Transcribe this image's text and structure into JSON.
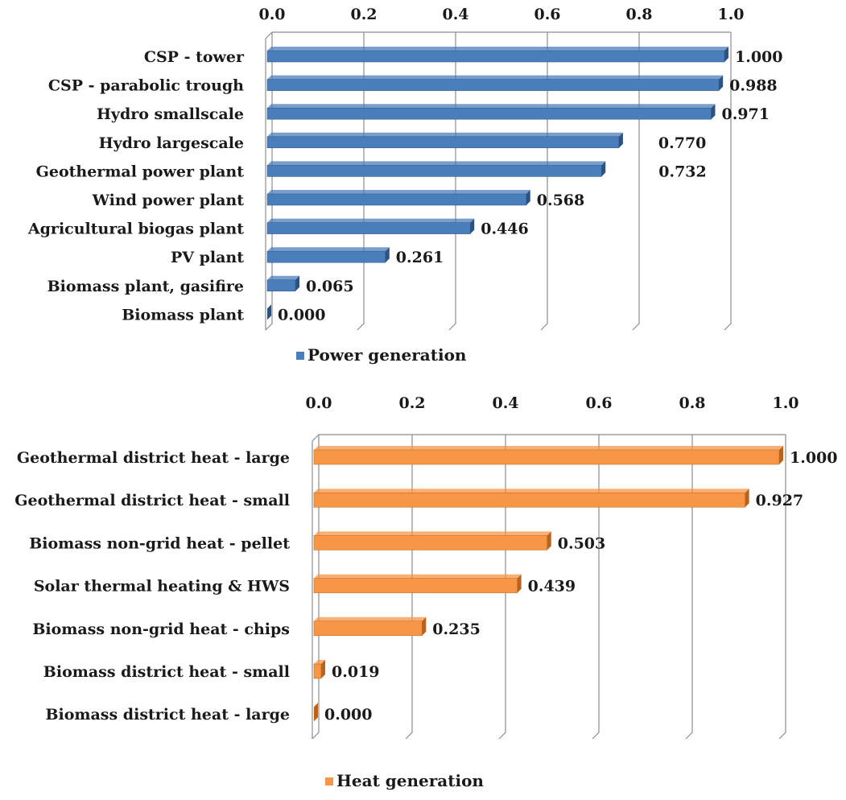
{
  "chart_data": [
    {
      "type": "bar",
      "orientation": "horizontal",
      "categories": [
        "CSP - tower",
        "CSP - parabolic trough",
        "Hydro smallscale",
        "Hydro largescale",
        "Geothermal power plant",
        "Wind power plant",
        "Agricultural biogas plant",
        "PV plant",
        "Biomass plant, gasifire",
        "Biomass plant"
      ],
      "series": [
        {
          "name": "Power generation",
          "values": [
            1.0,
            0.988,
            0.971,
            0.77,
            0.732,
            0.568,
            0.446,
            0.261,
            0.065,
            0.0
          ],
          "labels": [
            "1.000",
            "0.988",
            "0.971",
            "0.770",
            "0.732",
            "0.568",
            "0.446",
            "0.261",
            "0.065",
            "0.000"
          ],
          "color": "#4a7ebb",
          "dark": "#2c5282"
        }
      ],
      "xticks": [
        "0.0",
        "0.2",
        "0.4",
        "0.6",
        "0.8",
        "1.0"
      ],
      "xlim": [
        0,
        1
      ],
      "axis_position": "top",
      "grid": true,
      "legend": "bottom",
      "title": "",
      "xlabel": "",
      "ylabel": ""
    },
    {
      "type": "bar",
      "orientation": "horizontal",
      "categories": [
        "Geothermal district heat - large",
        "Geothermal district heat - small",
        "Biomass non-grid heat - pellet",
        "Solar thermal heating & HWS",
        "Biomass non-grid heat - chips",
        "Biomass district heat - small",
        "Biomass district heat - large"
      ],
      "series": [
        {
          "name": "Heat generation",
          "values": [
            1.0,
            0.927,
            0.503,
            0.439,
            0.235,
            0.019,
            0.0
          ],
          "labels": [
            "1.000",
            "0.927",
            "0.503",
            "0.439",
            "0.235",
            "0.019",
            "0.000"
          ],
          "color": "#f79646",
          "dark": "#b8641e"
        }
      ],
      "xticks": [
        "0.0",
        "0.2",
        "0.4",
        "0.6",
        "0.8",
        "1.0"
      ],
      "xlim": [
        0,
        1
      ],
      "axis_position": "top",
      "grid": true,
      "legend": "bottom",
      "title": "",
      "xlabel": "",
      "ylabel": ""
    }
  ]
}
